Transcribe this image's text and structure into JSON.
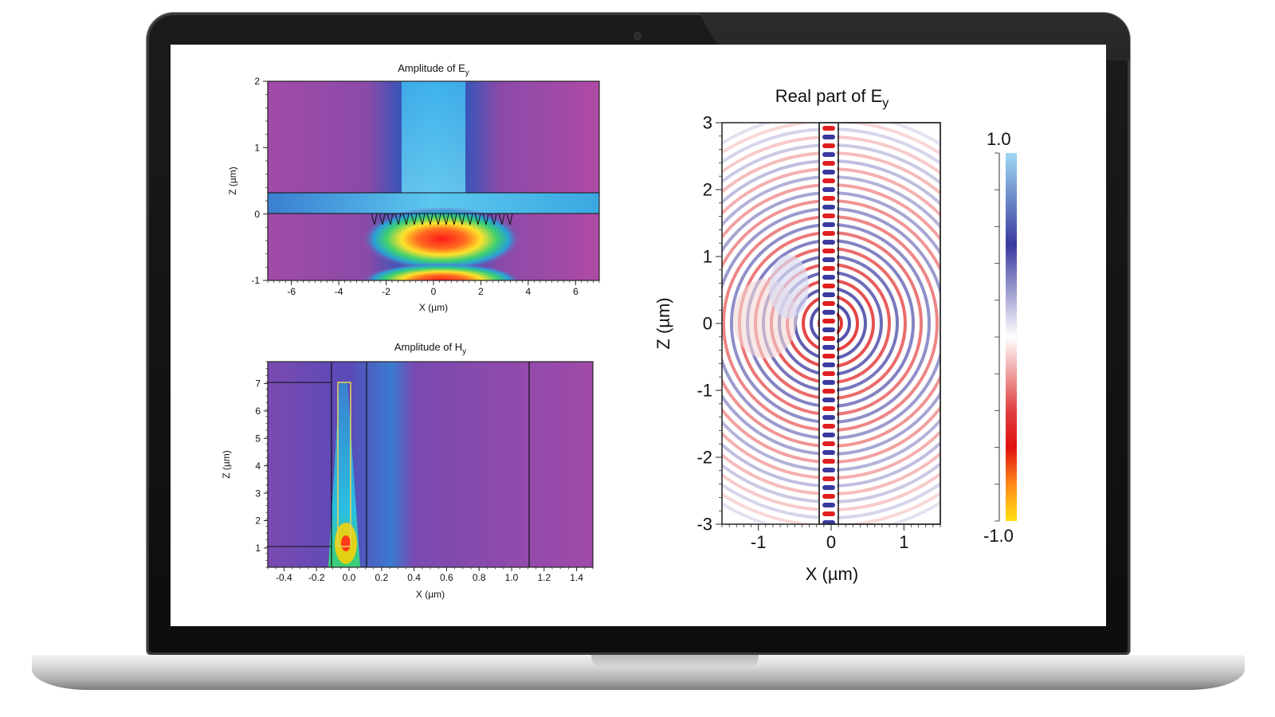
{
  "chart_data": [
    {
      "type": "heatmap",
      "title": "Amplitude of E",
      "title_sub": "y",
      "xlabel": "X (µm)",
      "ylabel": "Z (µm)",
      "xlim": [
        -7,
        7
      ],
      "ylim": [
        -1,
        2
      ],
      "xticks": [
        "-6",
        "-4",
        "-2",
        "0",
        "2",
        "4",
        "6"
      ],
      "xtick_values": [
        -6,
        -4,
        -2,
        0,
        2,
        4,
        6
      ],
      "yticks": [
        "-1",
        "0",
        "1",
        "2"
      ],
      "ytick_values": [
        -1,
        0,
        1,
        2
      ],
      "colors": {
        "background": "#b04aa6",
        "waveguide": "#3aa8e0",
        "hot": "#ff2020",
        "warm": "#ffe22a",
        "mid": "#3ccf72"
      }
    },
    {
      "type": "heatmap",
      "title": "Amplitude of H",
      "title_sub": "y",
      "xlabel": "X (µm)",
      "ylabel": "Z (µm)",
      "xlim": [
        -0.5,
        1.5
      ],
      "ylim": [
        0.3,
        7.8
      ],
      "xticks": [
        "-0.4",
        "-0.2",
        "0.0",
        "0.2",
        "0.4",
        "0.6",
        "0.8",
        "1.0",
        "1.2",
        "1.4"
      ],
      "xtick_values": [
        -0.4,
        -0.2,
        0.0,
        0.2,
        0.4,
        0.6,
        0.8,
        1.0,
        1.2,
        1.4
      ],
      "yticks": [
        "1",
        "2",
        "3",
        "4",
        "5",
        "6",
        "7"
      ],
      "ytick_values": [
        1,
        2,
        3,
        4,
        5,
        6,
        7
      ],
      "colors": {
        "background": "#9c4aa8",
        "structure": "#e0d060",
        "hot": "#ffcc00"
      }
    },
    {
      "type": "heatmap",
      "title": "Real part of E",
      "title_sub": "y",
      "xlabel": "X (µm)",
      "ylabel": "Z (µm)",
      "xlim": [
        -1.5,
        1.5
      ],
      "ylim": [
        -3,
        3
      ],
      "xticks": [
        "-1",
        "0",
        "1"
      ],
      "xtick_values": [
        -1,
        0,
        1
      ],
      "yticks": [
        "-3",
        "-2",
        "-1",
        "0",
        "1",
        "2",
        "3"
      ],
      "ytick_values": [
        -3,
        -2,
        -1,
        0,
        1,
        2,
        3
      ],
      "colorbar": {
        "max_label": "1.0",
        "min_label": "-1.0",
        "range": [
          -1.0,
          1.0
        ]
      },
      "colors": {
        "positive": "#3a3aa0",
        "negative": "#e02020",
        "zero": "#ffffff"
      }
    }
  ]
}
